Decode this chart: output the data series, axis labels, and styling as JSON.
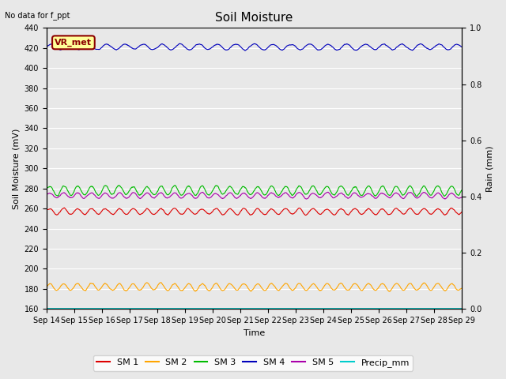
{
  "title": "Soil Moisture",
  "top_left_text": "No data for f_ppt",
  "annotation_text": "VR_met",
  "annotation_bg": "#FFFF99",
  "annotation_border": "#8B0000",
  "ylabel_left": "Soil Moisture (mV)",
  "ylabel_right": "Rain (mm)",
  "xlabel": "Time",
  "ylim_left": [
    160,
    440
  ],
  "ylim_right": [
    0.0,
    1.0
  ],
  "yticks_left": [
    160,
    180,
    200,
    220,
    240,
    260,
    280,
    300,
    320,
    340,
    360,
    380,
    400,
    420,
    440
  ],
  "yticks_right": [
    0.0,
    0.2,
    0.4,
    0.6,
    0.8,
    1.0
  ],
  "x_labels": [
    "Sep 14",
    "Sep 15",
    "Sep 16",
    "Sep 17",
    "Sep 18",
    "Sep 19",
    "Sep 20",
    "Sep 21",
    "Sep 22",
    "Sep 23",
    "Sep 24",
    "Sep 25",
    "Sep 26",
    "Sep 27",
    "Sep 28",
    "Sep 29"
  ],
  "n_points": 1440,
  "sm1_base": 257,
  "sm1_amp": 3.5,
  "sm1_freq": 2.0,
  "sm2_base": 182,
  "sm2_amp": 4.0,
  "sm2_freq": 2.0,
  "sm3_base": 278,
  "sm3_amp": 5.0,
  "sm3_freq": 2.0,
  "sm4_base": 421,
  "sm4_amp": 3.0,
  "sm4_freq": 1.5,
  "sm5_base": 273,
  "sm5_amp": 3.0,
  "sm5_freq": 2.0,
  "precip_base": 160.5,
  "colors": {
    "SM1": "#DD0000",
    "SM2": "#FFA500",
    "SM3": "#00BB00",
    "SM4": "#0000BB",
    "SM5": "#AA00AA",
    "Precip": "#00CCCC"
  },
  "bg_color": "#E8E8E8",
  "grid_color": "#FFFFFF",
  "title_fontsize": 11,
  "label_fontsize": 8,
  "tick_fontsize": 7,
  "legend_fontsize": 8
}
